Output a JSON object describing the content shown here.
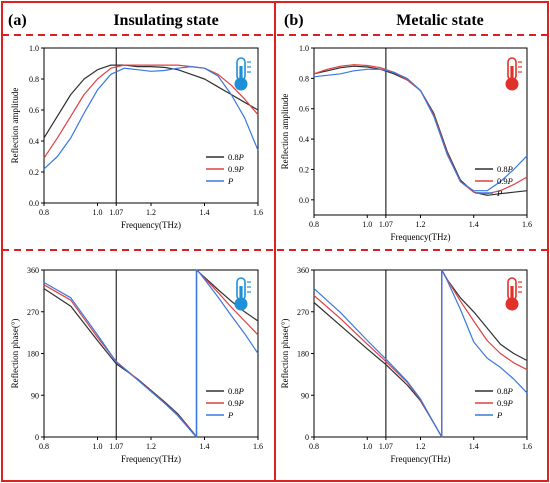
{
  "figure": {
    "columns": [
      {
        "letter": "(a)",
        "heading": "Insulating state",
        "thermo_color": "#1e90d8",
        "thermo_icon": "thermometer-cold-icon"
      },
      {
        "letter": "(b)",
        "heading": "Metalic state",
        "thermo_color": "#e0322a",
        "thermo_icon": "thermometer-hot-icon"
      }
    ],
    "frame_color": "#e02020"
  },
  "chart_data": [
    {
      "type": "line",
      "panel": "insulating-amplitude",
      "xlabel": "Frequency(THz)",
      "ylabel": "Reflection amplitude",
      "xlim": [
        0.8,
        1.6
      ],
      "ylim": [
        0.0,
        1.0
      ],
      "xticks": [
        "0.8",
        "1.0",
        "1.07",
        "1.2",
        "1.4",
        "1.6"
      ],
      "xtick_values": [
        0.8,
        1.0,
        1.07,
        1.2,
        1.4,
        1.6
      ],
      "yticks": [
        "0.0",
        "0.2",
        "0.4",
        "0.6",
        "0.8",
        "1.0"
      ],
      "ytick_values": [
        0,
        0.2,
        0.4,
        0.6,
        0.8,
        1.0
      ],
      "vline": 1.07,
      "legend_position": "bottom-right",
      "series": [
        {
          "name": "0.8P",
          "color": "#303030",
          "x": [
            0.8,
            0.85,
            0.9,
            0.95,
            1.0,
            1.05,
            1.1,
            1.15,
            1.2,
            1.25,
            1.3,
            1.35,
            1.4,
            1.45,
            1.5,
            1.55,
            1.6
          ],
          "values": [
            0.42,
            0.56,
            0.7,
            0.8,
            0.86,
            0.89,
            0.89,
            0.88,
            0.88,
            0.875,
            0.86,
            0.83,
            0.8,
            0.75,
            0.7,
            0.65,
            0.6
          ]
        },
        {
          "name": "0.9P",
          "color": "#e04040",
          "x": [
            0.8,
            0.85,
            0.9,
            0.95,
            1.0,
            1.05,
            1.1,
            1.15,
            1.2,
            1.25,
            1.3,
            1.35,
            1.4,
            1.45,
            1.5,
            1.55,
            1.6
          ],
          "values": [
            0.29,
            0.42,
            0.56,
            0.7,
            0.8,
            0.87,
            0.89,
            0.89,
            0.89,
            0.89,
            0.89,
            0.88,
            0.87,
            0.83,
            0.76,
            0.67,
            0.57
          ]
        },
        {
          "name": "P",
          "color": "#3a78e0",
          "x": [
            0.8,
            0.85,
            0.9,
            0.95,
            1.0,
            1.05,
            1.1,
            1.15,
            1.2,
            1.25,
            1.3,
            1.35,
            1.4,
            1.45,
            1.5,
            1.55,
            1.6
          ],
          "values": [
            0.22,
            0.3,
            0.42,
            0.58,
            0.73,
            0.83,
            0.87,
            0.86,
            0.85,
            0.855,
            0.87,
            0.88,
            0.87,
            0.82,
            0.7,
            0.55,
            0.34
          ]
        }
      ],
      "legend": [
        "0.8P",
        "0.9P",
        "P"
      ]
    },
    {
      "type": "line",
      "panel": "metalic-amplitude",
      "xlabel": "Frequency(THz)",
      "ylabel": "Reflection amplitude",
      "xlim": [
        0.8,
        1.6
      ],
      "ylim": [
        -0.1,
        1.0
      ],
      "xticks": [
        "0.8",
        "1.0",
        "1.07",
        "1.2",
        "1.4",
        "1.6"
      ],
      "xtick_values": [
        0.8,
        1.0,
        1.07,
        1.2,
        1.4,
        1.6
      ],
      "yticks": [
        "0.0",
        "0.2",
        "0.4",
        "0.6",
        "0.8",
        "1.0"
      ],
      "ytick_values": [
        0,
        0.2,
        0.4,
        0.6,
        0.8,
        1.0
      ],
      "vline": 1.07,
      "legend_position": "bottom-right",
      "series": [
        {
          "name": "0.8P",
          "color": "#303030",
          "x": [
            0.8,
            0.85,
            0.9,
            0.95,
            1.0,
            1.05,
            1.1,
            1.15,
            1.2,
            1.25,
            1.3,
            1.35,
            1.4,
            1.45,
            1.5,
            1.55,
            1.6
          ],
          "values": [
            0.83,
            0.85,
            0.87,
            0.88,
            0.875,
            0.86,
            0.83,
            0.79,
            0.72,
            0.57,
            0.32,
            0.13,
            0.05,
            0.03,
            0.04,
            0.05,
            0.06
          ]
        },
        {
          "name": "0.9P",
          "color": "#e04040",
          "x": [
            0.8,
            0.85,
            0.9,
            0.95,
            1.0,
            1.05,
            1.1,
            1.15,
            1.2,
            1.25,
            1.3,
            1.35,
            1.4,
            1.45,
            1.5,
            1.55,
            1.6
          ],
          "values": [
            0.83,
            0.86,
            0.88,
            0.89,
            0.885,
            0.87,
            0.84,
            0.79,
            0.72,
            0.56,
            0.31,
            0.12,
            0.05,
            0.04,
            0.06,
            0.1,
            0.15
          ]
        },
        {
          "name": "P",
          "color": "#3a78e0",
          "x": [
            0.8,
            0.85,
            0.9,
            0.95,
            1.0,
            1.05,
            1.1,
            1.15,
            1.2,
            1.25,
            1.3,
            1.35,
            1.4,
            1.45,
            1.5,
            1.55,
            1.6
          ],
          "values": [
            0.81,
            0.82,
            0.83,
            0.85,
            0.86,
            0.86,
            0.84,
            0.8,
            0.72,
            0.55,
            0.3,
            0.12,
            0.06,
            0.06,
            0.12,
            0.2,
            0.29
          ]
        }
      ],
      "legend": [
        "0.8P",
        "0.9P",
        "P"
      ]
    },
    {
      "type": "line",
      "panel": "insulating-phase",
      "xlabel": "Frequency(THz)",
      "ylabel": "Reflection phase(°)",
      "xlim": [
        0.8,
        1.6
      ],
      "ylim": [
        0,
        360
      ],
      "xticks": [
        "0.8",
        "1.0",
        "1.07",
        "1.2",
        "1.4",
        "1.6"
      ],
      "xtick_values": [
        0.8,
        1.0,
        1.07,
        1.2,
        1.4,
        1.6
      ],
      "yticks": [
        "0",
        "90",
        "180",
        "270",
        "360"
      ],
      "ytick_values": [
        0,
        90,
        180,
        270,
        360
      ],
      "vline": 1.07,
      "legend_position": "bottom-right",
      "series": [
        {
          "name": "0.8P",
          "color": "#303030",
          "x": [
            0.8,
            0.9,
            1.0,
            1.07,
            1.15,
            1.25,
            1.3,
            1.36,
            1.37,
            1.37,
            1.38,
            1.45,
            1.5,
            1.55,
            1.6
          ],
          "values": [
            320,
            282,
            208,
            158,
            125,
            76,
            50,
            8,
            0,
            360,
            355,
            318,
            293,
            270,
            250
          ]
        },
        {
          "name": "0.9P",
          "color": "#e04040",
          "x": [
            0.8,
            0.9,
            1.0,
            1.07,
            1.15,
            1.25,
            1.3,
            1.36,
            1.37,
            1.37,
            1.38,
            1.45,
            1.5,
            1.55,
            1.6
          ],
          "values": [
            328,
            295,
            215,
            163,
            124,
            74,
            48,
            7,
            0,
            360,
            355,
            312,
            280,
            250,
            220
          ]
        },
        {
          "name": "P",
          "color": "#3a78e0",
          "x": [
            0.8,
            0.9,
            1.0,
            1.07,
            1.15,
            1.25,
            1.3,
            1.36,
            1.37,
            1.37,
            1.38,
            1.45,
            1.5,
            1.55,
            1.6
          ],
          "values": [
            333,
            300,
            220,
            162,
            123,
            73,
            46,
            6,
            0,
            360,
            355,
            302,
            262,
            223,
            180
          ]
        }
      ],
      "legend": [
        "0.8P",
        "0.9P",
        "P"
      ]
    },
    {
      "type": "line",
      "panel": "metalic-phase",
      "xlabel": "Frequency(THz)",
      "ylabel": "Reflection phase(°)",
      "xlim": [
        0.8,
        1.6
      ],
      "ylim": [
        0,
        360
      ],
      "xticks": [
        "0.8",
        "1.0",
        "1.07",
        "1.2",
        "1.4",
        "1.6"
      ],
      "xtick_values": [
        0.8,
        1.0,
        1.07,
        1.2,
        1.4,
        1.6
      ],
      "yticks": [
        "0",
        "90",
        "180",
        "270",
        "360"
      ],
      "ytick_values": [
        0,
        90,
        180,
        270,
        360
      ],
      "vline": 1.07,
      "legend_position": "bottom-right",
      "series": [
        {
          "name": "0.8P",
          "color": "#303030",
          "x": [
            0.8,
            0.9,
            1.0,
            1.07,
            1.15,
            1.2,
            1.25,
            1.28,
            1.28,
            1.3,
            1.35,
            1.4,
            1.45,
            1.5,
            1.55,
            1.6
          ],
          "values": [
            290,
            240,
            190,
            156,
            112,
            78,
            30,
            0,
            360,
            340,
            300,
            270,
            235,
            200,
            180,
            165
          ]
        },
        {
          "name": "0.9P",
          "color": "#e04040",
          "x": [
            0.8,
            0.9,
            1.0,
            1.07,
            1.15,
            1.2,
            1.25,
            1.28,
            1.28,
            1.3,
            1.35,
            1.4,
            1.45,
            1.5,
            1.55,
            1.6
          ],
          "values": [
            305,
            255,
            200,
            163,
            118,
            80,
            30,
            0,
            360,
            340,
            293,
            250,
            208,
            180,
            160,
            145
          ]
        },
        {
          "name": "P",
          "color": "#3a78e0",
          "x": [
            0.8,
            0.9,
            1.0,
            1.07,
            1.15,
            1.2,
            1.25,
            1.28,
            1.28,
            1.3,
            1.35,
            1.4,
            1.45,
            1.5,
            1.55,
            1.6
          ],
          "values": [
            320,
            268,
            208,
            168,
            120,
            82,
            30,
            0,
            360,
            338,
            275,
            205,
            170,
            150,
            125,
            95
          ]
        }
      ],
      "legend": [
        "0.8P",
        "0.9P",
        "P"
      ]
    }
  ]
}
